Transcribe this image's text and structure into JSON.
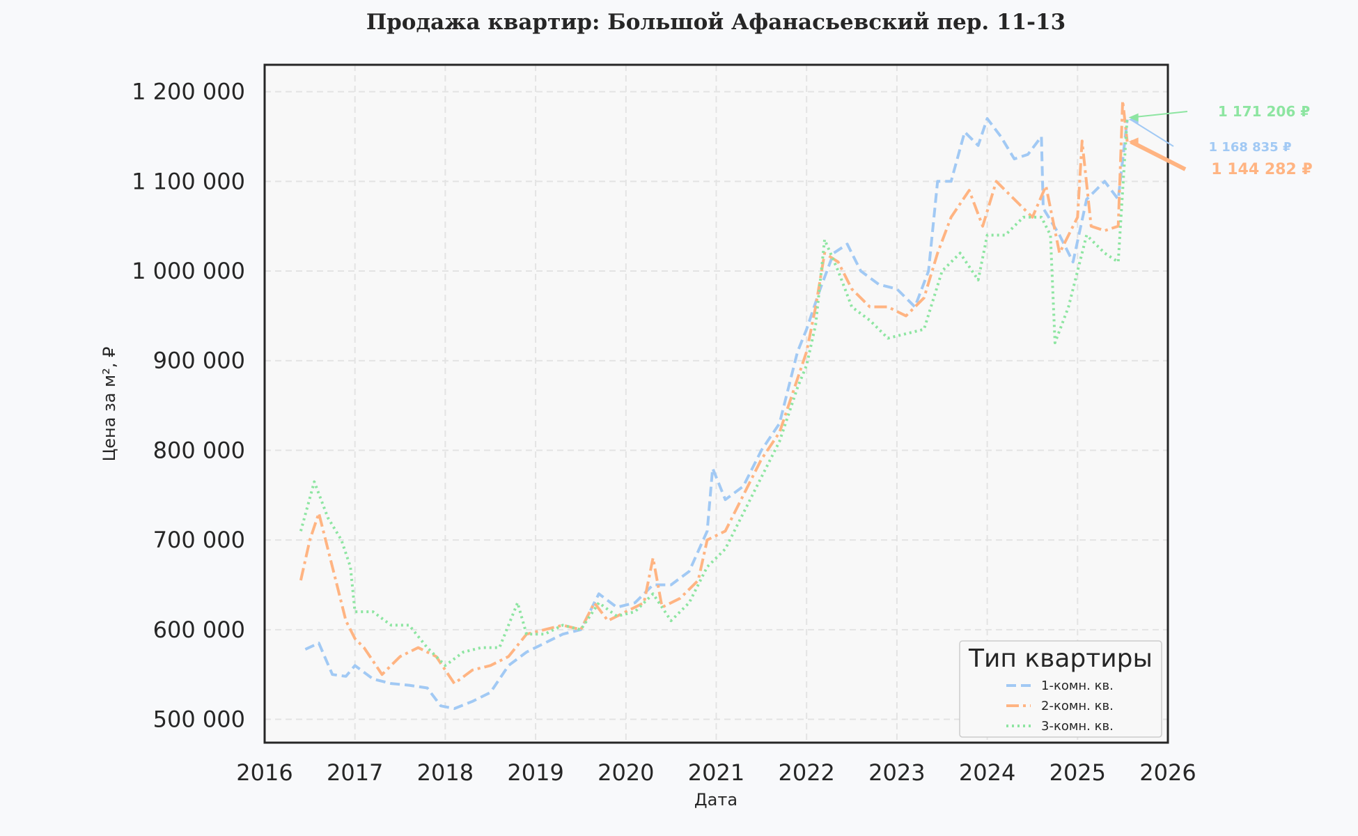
{
  "chart_data": {
    "type": "line",
    "title": "Продажа квартир: Большой Афанасьевский пер. 11-13",
    "xlabel": "Дата",
    "ylabel": "Цена за м², ₽",
    "xlim": [
      2016,
      2026
    ],
    "ylim": [
      474000,
      1230000
    ],
    "x_ticks": [
      "2016",
      "2017",
      "2018",
      "2019",
      "2020",
      "2021",
      "2022",
      "2023",
      "2024",
      "2025",
      "2026"
    ],
    "y_ticks": [
      500000,
      600000,
      700000,
      800000,
      900000,
      1000000,
      1100000,
      1200000
    ],
    "y_tick_labels": [
      "500 000",
      "600 000",
      "700 000",
      "800 000",
      "900 000",
      "1 000 000",
      "1 100 000",
      "1 200 000"
    ],
    "grid": true,
    "legend": {
      "title": "Тип квартиры",
      "placement": "lower-right"
    },
    "series": [
      {
        "name": "1-комн. кв.",
        "color": "#a1c9f4",
        "style": "dashed",
        "points": [
          [
            2016.45,
            578000
          ],
          [
            2016.6,
            585000
          ],
          [
            2016.75,
            550000
          ],
          [
            2016.9,
            548000
          ],
          [
            2017.0,
            560000
          ],
          [
            2017.2,
            545000
          ],
          [
            2017.4,
            540000
          ],
          [
            2017.6,
            538000
          ],
          [
            2017.8,
            535000
          ],
          [
            2017.95,
            515000
          ],
          [
            2018.1,
            512000
          ],
          [
            2018.3,
            520000
          ],
          [
            2018.5,
            530000
          ],
          [
            2018.7,
            560000
          ],
          [
            2018.9,
            575000
          ],
          [
            2019.1,
            585000
          ],
          [
            2019.3,
            595000
          ],
          [
            2019.5,
            600000
          ],
          [
            2019.7,
            640000
          ],
          [
            2019.9,
            625000
          ],
          [
            2020.1,
            630000
          ],
          [
            2020.3,
            650000
          ],
          [
            2020.5,
            650000
          ],
          [
            2020.7,
            665000
          ],
          [
            2020.9,
            710000
          ],
          [
            2020.96,
            780000
          ],
          [
            2021.1,
            745000
          ],
          [
            2021.3,
            760000
          ],
          [
            2021.5,
            800000
          ],
          [
            2021.7,
            830000
          ],
          [
            2021.9,
            910000
          ],
          [
            2022.0,
            935000
          ],
          [
            2022.15,
            980000
          ],
          [
            2022.3,
            1020000
          ],
          [
            2022.45,
            1030000
          ],
          [
            2022.6,
            1000000
          ],
          [
            2022.8,
            985000
          ],
          [
            2023.0,
            980000
          ],
          [
            2023.2,
            960000
          ],
          [
            2023.35,
            1000000
          ],
          [
            2023.45,
            1100000
          ],
          [
            2023.6,
            1100000
          ],
          [
            2023.75,
            1155000
          ],
          [
            2023.9,
            1140000
          ],
          [
            2024.0,
            1170000
          ],
          [
            2024.15,
            1150000
          ],
          [
            2024.3,
            1125000
          ],
          [
            2024.45,
            1130000
          ],
          [
            2024.6,
            1150000
          ],
          [
            2024.62,
            1070000
          ],
          [
            2024.8,
            1040000
          ],
          [
            2024.95,
            1010000
          ],
          [
            2025.1,
            1080000
          ],
          [
            2025.3,
            1100000
          ],
          [
            2025.45,
            1080000
          ],
          [
            2025.55,
            1168835
          ]
        ]
      },
      {
        "name": "2-комн. кв.",
        "color": "#ffb482",
        "style": "dashdot",
        "points": [
          [
            2016.4,
            655000
          ],
          [
            2016.5,
            700000
          ],
          [
            2016.6,
            730000
          ],
          [
            2016.7,
            690000
          ],
          [
            2016.8,
            650000
          ],
          [
            2016.9,
            610000
          ],
          [
            2017.0,
            590000
          ],
          [
            2017.1,
            580000
          ],
          [
            2017.3,
            550000
          ],
          [
            2017.5,
            570000
          ],
          [
            2017.7,
            580000
          ],
          [
            2017.9,
            570000
          ],
          [
            2018.1,
            540000
          ],
          [
            2018.3,
            555000
          ],
          [
            2018.5,
            560000
          ],
          [
            2018.7,
            570000
          ],
          [
            2018.9,
            595000
          ],
          [
            2019.1,
            600000
          ],
          [
            2019.3,
            605000
          ],
          [
            2019.5,
            600000
          ],
          [
            2019.65,
            630000
          ],
          [
            2019.8,
            610000
          ],
          [
            2020.0,
            620000
          ],
          [
            2020.2,
            630000
          ],
          [
            2020.3,
            680000
          ],
          [
            2020.4,
            625000
          ],
          [
            2020.6,
            635000
          ],
          [
            2020.8,
            655000
          ],
          [
            2020.9,
            700000
          ],
          [
            2021.1,
            710000
          ],
          [
            2021.3,
            750000
          ],
          [
            2021.5,
            790000
          ],
          [
            2021.7,
            820000
          ],
          [
            2021.9,
            880000
          ],
          [
            2022.0,
            910000
          ],
          [
            2022.1,
            960000
          ],
          [
            2022.2,
            1020000
          ],
          [
            2022.35,
            1010000
          ],
          [
            2022.5,
            980000
          ],
          [
            2022.7,
            960000
          ],
          [
            2022.9,
            960000
          ],
          [
            2023.1,
            950000
          ],
          [
            2023.3,
            970000
          ],
          [
            2023.45,
            1020000
          ],
          [
            2023.6,
            1060000
          ],
          [
            2023.8,
            1090000
          ],
          [
            2023.95,
            1050000
          ],
          [
            2024.1,
            1100000
          ],
          [
            2024.3,
            1080000
          ],
          [
            2024.5,
            1060000
          ],
          [
            2024.65,
            1095000
          ],
          [
            2024.8,
            1020000
          ],
          [
            2025.0,
            1060000
          ],
          [
            2025.05,
            1145000
          ],
          [
            2025.15,
            1050000
          ],
          [
            2025.3,
            1045000
          ],
          [
            2025.45,
            1050000
          ],
          [
            2025.5,
            1190000
          ],
          [
            2025.55,
            1144282
          ]
        ]
      },
      {
        "name": "3-комн. кв.",
        "color": "#8de5a1",
        "style": "dotted",
        "points": [
          [
            2016.4,
            710000
          ],
          [
            2016.55,
            765000
          ],
          [
            2016.7,
            725000
          ],
          [
            2016.85,
            700000
          ],
          [
            2016.95,
            670000
          ],
          [
            2017.0,
            620000
          ],
          [
            2017.2,
            620000
          ],
          [
            2017.4,
            605000
          ],
          [
            2017.6,
            605000
          ],
          [
            2017.8,
            580000
          ],
          [
            2018.0,
            560000
          ],
          [
            2018.2,
            575000
          ],
          [
            2018.4,
            580000
          ],
          [
            2018.6,
            580000
          ],
          [
            2018.8,
            630000
          ],
          [
            2018.9,
            595000
          ],
          [
            2019.1,
            595000
          ],
          [
            2019.3,
            605000
          ],
          [
            2019.5,
            600000
          ],
          [
            2019.7,
            630000
          ],
          [
            2019.9,
            615000
          ],
          [
            2020.1,
            620000
          ],
          [
            2020.3,
            640000
          ],
          [
            2020.5,
            610000
          ],
          [
            2020.7,
            630000
          ],
          [
            2020.9,
            670000
          ],
          [
            2021.1,
            690000
          ],
          [
            2021.3,
            730000
          ],
          [
            2021.5,
            770000
          ],
          [
            2021.7,
            810000
          ],
          [
            2021.9,
            870000
          ],
          [
            2022.0,
            895000
          ],
          [
            2022.1,
            940000
          ],
          [
            2022.2,
            1035000
          ],
          [
            2022.35,
            1000000
          ],
          [
            2022.5,
            960000
          ],
          [
            2022.7,
            945000
          ],
          [
            2022.9,
            925000
          ],
          [
            2023.1,
            930000
          ],
          [
            2023.3,
            935000
          ],
          [
            2023.5,
            1000000
          ],
          [
            2023.7,
            1020000
          ],
          [
            2023.9,
            990000
          ],
          [
            2024.0,
            1040000
          ],
          [
            2024.2,
            1040000
          ],
          [
            2024.4,
            1060000
          ],
          [
            2024.6,
            1060000
          ],
          [
            2024.7,
            1040000
          ],
          [
            2024.75,
            920000
          ],
          [
            2024.9,
            960000
          ],
          [
            2025.0,
            1000000
          ],
          [
            2025.1,
            1040000
          ],
          [
            2025.3,
            1020000
          ],
          [
            2025.45,
            1010000
          ],
          [
            2025.55,
            1171206
          ]
        ]
      }
    ],
    "annotations": [
      {
        "series": "1-комн. кв.",
        "x": 2025.55,
        "value": 1168835,
        "text": "1 168 835 ₽",
        "color": "#a1c9f4"
      },
      {
        "series": "2-комн. кв.",
        "x": 2025.55,
        "value": 1144282,
        "text": "1 144 282 ₽",
        "color": "#ffb482"
      },
      {
        "series": "3-комн. кв.",
        "x": 2025.55,
        "value": 1171206,
        "text": "1 171 206 ₽",
        "color": "#8de5a1"
      }
    ]
  }
}
